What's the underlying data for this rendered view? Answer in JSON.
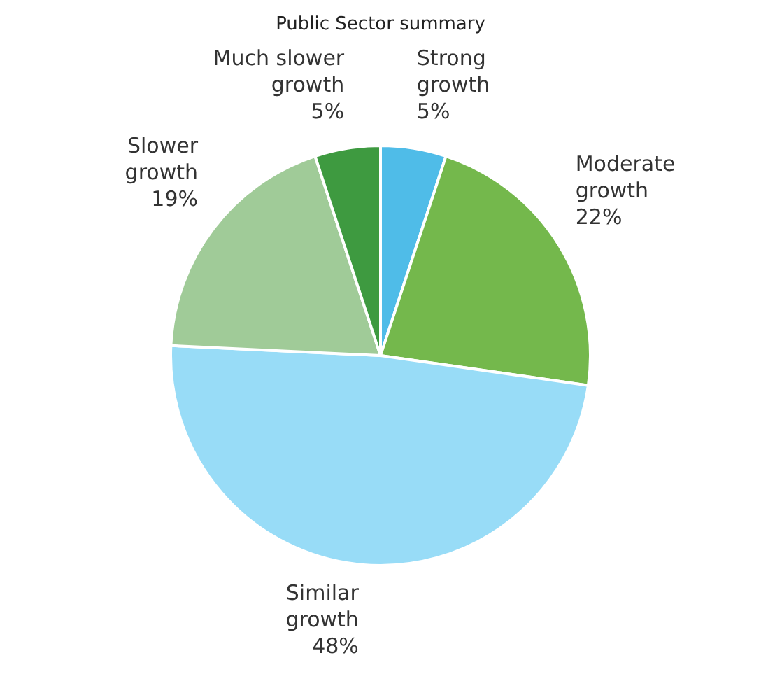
{
  "chart_data": {
    "type": "pie",
    "title": "Public Sector summary",
    "categories": [
      "Strong growth",
      "Moderate growth",
      "Similar growth",
      "Slower growth",
      "Much slower growth"
    ],
    "values": [
      5,
      22,
      48,
      19,
      5
    ],
    "colors": [
      "#4fbce8",
      "#74b84c",
      "#98dcf7",
      "#a0cb98",
      "#3e9a40"
    ],
    "value_labels": [
      "5%",
      "22%",
      "48%",
      "19%",
      "5%"
    ],
    "legend": false
  }
}
